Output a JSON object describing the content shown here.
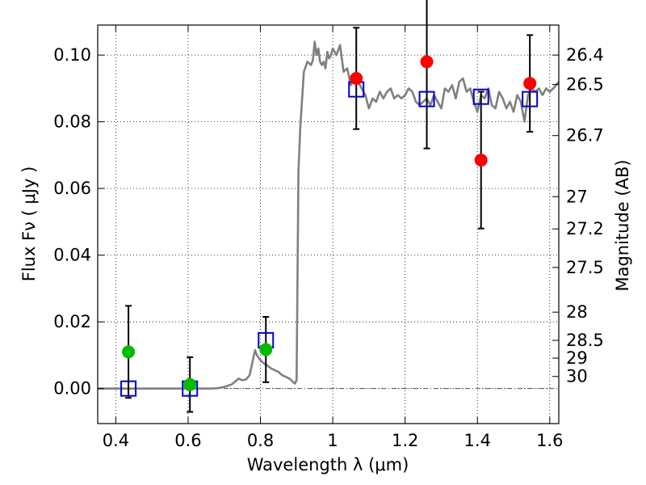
{
  "chart_data": {
    "type": "scatter",
    "title": "",
    "xlabel": "Wavelength  λ (μm)",
    "ylabel_left": "Flux  Fν  ( μJy )",
    "ylabel_right": "Magnitude (AB)",
    "xlim": [
      0.35,
      1.625
    ],
    "ylim": [
      -0.0105,
      0.109
    ],
    "grid": true,
    "x_ticks": [
      {
        "value": 0.4,
        "label": "0.4"
      },
      {
        "value": 0.6,
        "label": "0.6"
      },
      {
        "value": 0.8,
        "label": "0.8"
      },
      {
        "value": 1.0,
        "label": "1"
      },
      {
        "value": 1.2,
        "label": "1.2"
      },
      {
        "value": 1.4,
        "label": "1.4"
      },
      {
        "value": 1.6,
        "label": "1.6"
      }
    ],
    "y_ticks": [
      {
        "value": 0.0,
        "label": "0.00"
      },
      {
        "value": 0.02,
        "label": "0.02"
      },
      {
        "value": 0.04,
        "label": "0.04"
      },
      {
        "value": 0.06,
        "label": "0.06"
      },
      {
        "value": 0.08,
        "label": "0.08"
      },
      {
        "value": 0.1,
        "label": "0.10"
      }
    ],
    "mag_ticks": [
      {
        "value": 26.4,
        "label": "26.4"
      },
      {
        "value": 26.5,
        "label": "26.5"
      },
      {
        "value": 26.7,
        "label": "26.7"
      },
      {
        "value": 27.0,
        "label": "27"
      },
      {
        "value": 27.2,
        "label": "27.2"
      },
      {
        "value": 27.5,
        "label": "27.5"
      },
      {
        "value": 28.0,
        "label": "28"
      },
      {
        "value": 28.5,
        "label": "28.5"
      },
      {
        "value": 29.0,
        "label": "29"
      },
      {
        "value": 30.0,
        "label": "30"
      }
    ],
    "colors": {
      "model": "#808080",
      "observed": "#ff0000",
      "observed_upper": "#00bb00",
      "model_photometry": "#0000cc",
      "errorbar": "#000000"
    },
    "series": [
      {
        "name": "model spectrum",
        "kind": "line",
        "x": [
          0.35,
          0.66,
          0.68,
          0.7,
          0.72,
          0.74,
          0.75,
          0.76,
          0.77,
          0.78,
          0.785,
          0.79,
          0.8,
          0.81,
          0.82,
          0.83,
          0.84,
          0.85,
          0.86,
          0.87,
          0.88,
          0.89,
          0.895,
          0.9,
          0.905,
          0.91,
          0.92,
          0.93,
          0.94,
          0.945,
          0.95,
          0.955,
          0.96,
          0.965,
          0.97,
          0.975,
          0.98,
          0.985,
          0.99,
          0.995,
          1.0,
          1.01,
          1.02,
          1.03,
          1.04,
          1.05,
          1.06,
          1.07,
          1.08,
          1.09,
          1.1,
          1.11,
          1.12,
          1.13,
          1.14,
          1.15,
          1.16,
          1.17,
          1.18,
          1.19,
          1.2,
          1.21,
          1.22,
          1.23,
          1.24,
          1.25,
          1.26,
          1.27,
          1.28,
          1.29,
          1.3,
          1.31,
          1.32,
          1.33,
          1.34,
          1.35,
          1.36,
          1.37,
          1.38,
          1.39,
          1.4,
          1.41,
          1.42,
          1.43,
          1.44,
          1.45,
          1.46,
          1.47,
          1.48,
          1.49,
          1.5,
          1.51,
          1.52,
          1.53,
          1.54,
          1.55,
          1.56,
          1.57,
          1.58,
          1.59,
          1.6,
          1.61,
          1.625
        ],
        "y": [
          0.0,
          0.0,
          0.0001,
          0.0005,
          0.0012,
          0.003,
          0.0025,
          0.0027,
          0.004,
          0.009,
          0.0115,
          0.01,
          0.0085,
          0.0075,
          0.0068,
          0.006,
          0.0055,
          0.005,
          0.004,
          0.0035,
          0.003,
          0.002,
          0.0015,
          0.0025,
          0.065,
          0.078,
          0.095,
          0.098,
          0.097,
          0.0985,
          0.104,
          0.1,
          0.102,
          0.098,
          0.097,
          0.098,
          0.096,
          0.101,
          0.099,
          0.1,
          0.102,
          0.1,
          0.103,
          0.095,
          0.096,
          0.091,
          0.093,
          0.092,
          0.09,
          0.088,
          0.084,
          0.087,
          0.086,
          0.089,
          0.087,
          0.089,
          0.09,
          0.087,
          0.088,
          0.087,
          0.088,
          0.09,
          0.089,
          0.086,
          0.085,
          0.086,
          0.087,
          0.085,
          0.088,
          0.086,
          0.084,
          0.09,
          0.089,
          0.091,
          0.087,
          0.092,
          0.093,
          0.089,
          0.09,
          0.086,
          0.083,
          0.088,
          0.087,
          0.09,
          0.085,
          0.084,
          0.089,
          0.087,
          0.084,
          0.086,
          0.083,
          0.088,
          0.086,
          0.08,
          0.088,
          0.09,
          0.089,
          0.09,
          0.088,
          0.09,
          0.089,
          0.09,
          0.092
        ]
      },
      {
        "name": "observed detections",
        "kind": "points-with-errors",
        "x": [
          1.065,
          1.26,
          1.41,
          1.545
        ],
        "y": [
          0.093,
          0.098,
          0.0685,
          0.0915
        ],
        "yerr": [
          0.0152,
          0.026,
          0.0205,
          0.0145
        ]
      },
      {
        "name": "observed non-detections",
        "kind": "points-with-errors",
        "x": [
          0.435,
          0.605,
          0.815
        ],
        "y": [
          0.011,
          0.0012,
          0.0117
        ],
        "yerr": [
          0.0138,
          0.0082,
          0.0098
        ]
      },
      {
        "name": "model photometry",
        "kind": "square-markers",
        "x": [
          0.435,
          0.605,
          0.815,
          1.065,
          1.26,
          1.41,
          1.545
        ],
        "y": [
          0.0,
          0.0,
          0.0145,
          0.0897,
          0.0868,
          0.0875,
          0.0868
        ]
      }
    ]
  }
}
